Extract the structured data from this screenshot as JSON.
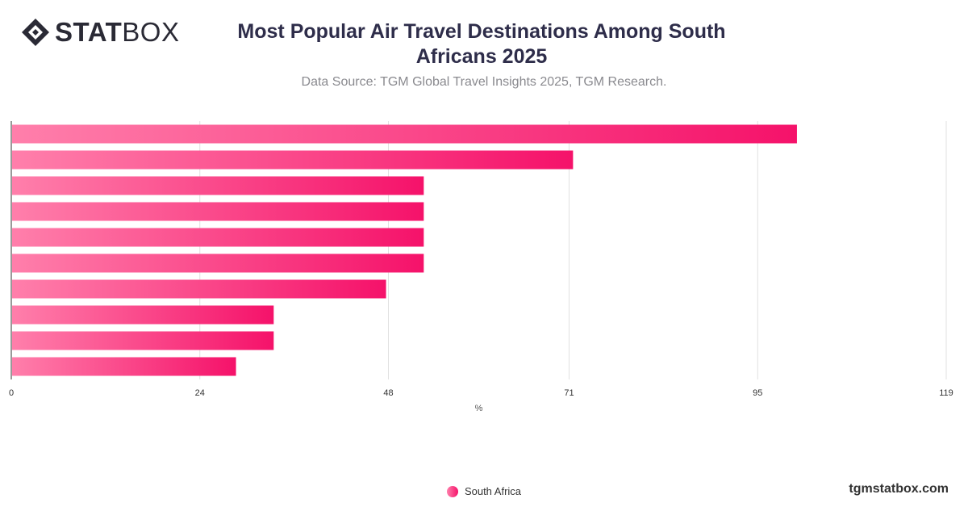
{
  "brand": {
    "bold": "STAT",
    "light": "BOX",
    "url": "tgmstatbox.com"
  },
  "chart_data": {
    "type": "bar",
    "orientation": "horizontal",
    "title": "Most Popular Air Travel Destinations Among South Africans 2025",
    "subtitle": "Data Source: TGM Global Travel Insights 2025, TGM Research.",
    "xlabel": "%",
    "ylabel": "",
    "xlim": [
      0,
      119
    ],
    "x_ticks": [
      0,
      24,
      48,
      71,
      95,
      119
    ],
    "categories": [
      "",
      "",
      "",
      "",
      "",
      "",
      "",
      "",
      "",
      ""
    ],
    "series": [
      {
        "name": "South Africa",
        "values": [
          100,
          71.5,
          52.5,
          52.5,
          52.5,
          52.5,
          47.7,
          33.4,
          33.4,
          28.6
        ]
      }
    ],
    "grid": true,
    "legend_position": "bottom",
    "colors": {
      "bar_start": "#ff7fab",
      "bar_end": "#f5126a",
      "grid": "#e1e1e1",
      "axis": "#333333"
    }
  }
}
